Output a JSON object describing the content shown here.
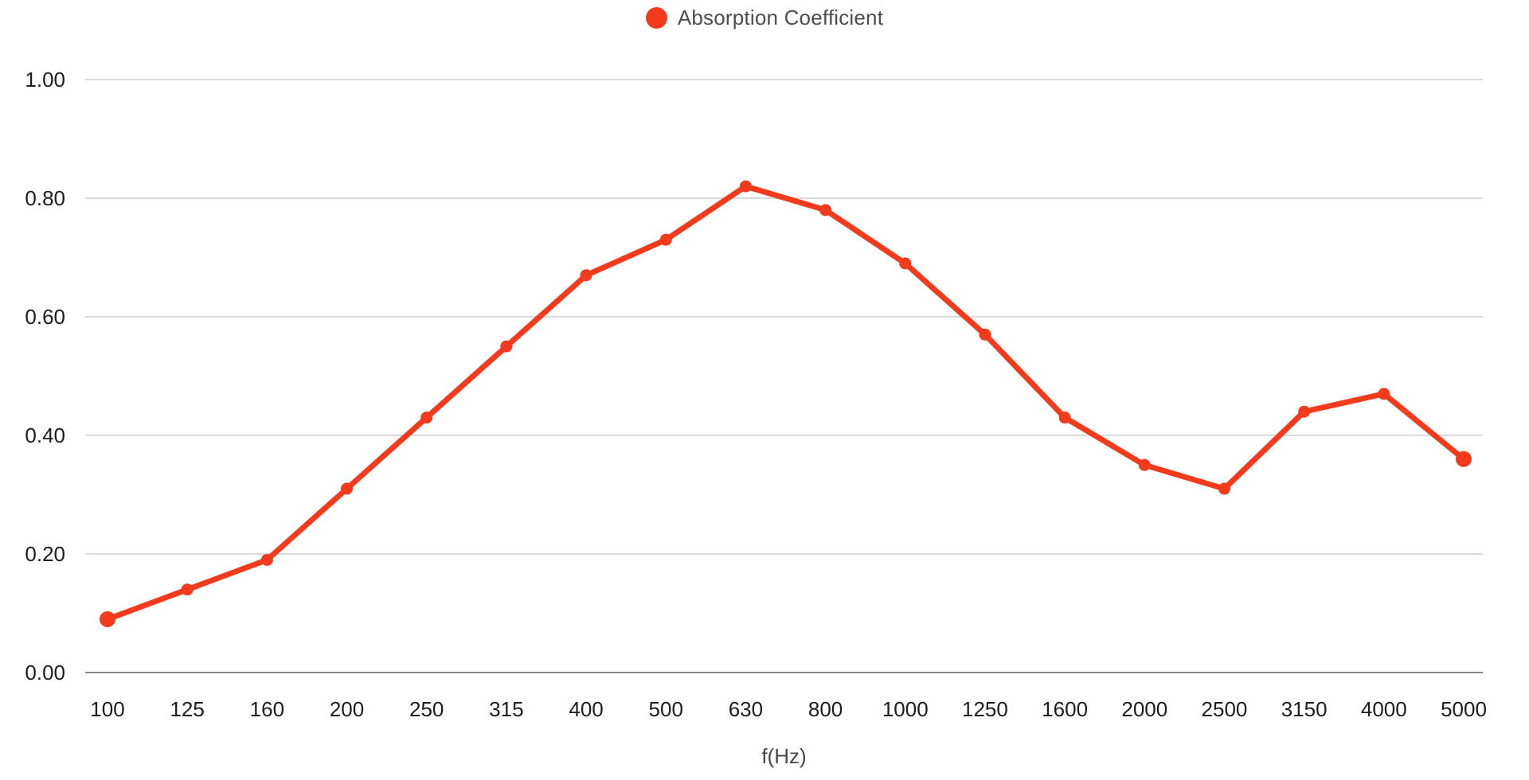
{
  "legend": {
    "label": "Absorption Coefficient",
    "marker_color": "#F23A1C"
  },
  "chart_data": {
    "type": "line",
    "title": "",
    "categories": [
      "100",
      "125",
      "160",
      "200",
      "250",
      "315",
      "400",
      "500",
      "630",
      "800",
      "1000",
      "1250",
      "1600",
      "2000",
      "2500",
      "3150",
      "4000",
      "5000"
    ],
    "series": [
      {
        "name": "Absorption Coefficient",
        "color": "#F23A1C",
        "values": [
          0.09,
          0.14,
          0.19,
          0.31,
          0.43,
          0.55,
          0.67,
          0.73,
          0.82,
          0.78,
          0.69,
          0.57,
          0.43,
          0.35,
          0.31,
          0.44,
          0.47,
          0.36
        ]
      }
    ],
    "xlabel": "f(Hz)",
    "ylabel": "",
    "ylim": [
      0.0,
      1.0
    ],
    "ytick_values": [
      0.0,
      0.2,
      0.4,
      0.6,
      0.8,
      1.0
    ],
    "ytick_labels": [
      "0.00",
      "0.20",
      "0.40",
      "0.60",
      "0.80",
      "1.00"
    ],
    "grid": "horizontal",
    "legend_position": "top-center"
  },
  "colors": {
    "series_line": "#F23A1C",
    "grid_line": "#dadada",
    "axis_line": "#8a8a8a",
    "tick_label": "#1d1d1f",
    "legend_text": "#4d4d4d",
    "xlabel_text": "#48484a",
    "background": "#ffffff"
  }
}
